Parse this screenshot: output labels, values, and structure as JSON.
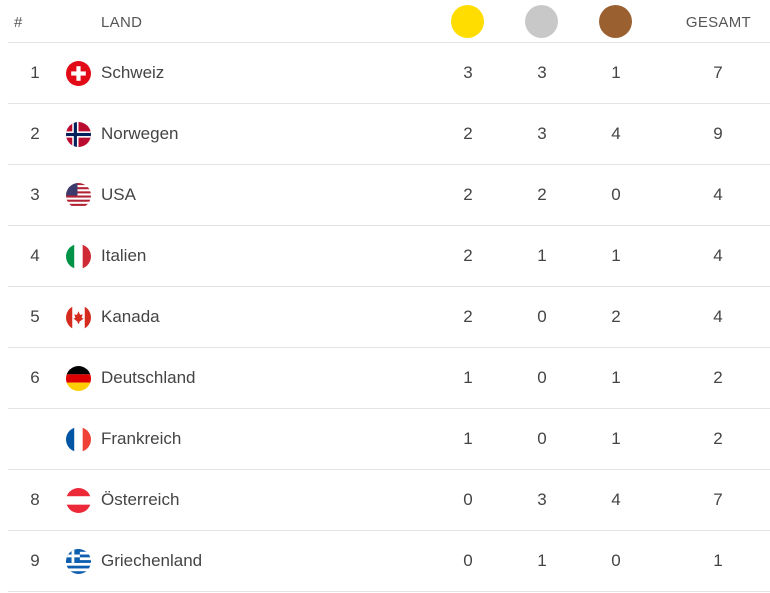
{
  "header": {
    "rank_label": "#",
    "country_label": "LAND",
    "total_label": "GESAMT",
    "gold_color": "#ffdd00",
    "silver_color": "#c8c8c8",
    "bronze_color": "#9a6030"
  },
  "rows": [
    {
      "rank": "1",
      "flag": "switzerland-flag-icon",
      "country": "Schweiz",
      "gold": "3",
      "silver": "3",
      "bronze": "1",
      "total": "7"
    },
    {
      "rank": "2",
      "flag": "norway-flag-icon",
      "country": "Norwegen",
      "gold": "2",
      "silver": "3",
      "bronze": "4",
      "total": "9"
    },
    {
      "rank": "3",
      "flag": "usa-flag-icon",
      "country": "USA",
      "gold": "2",
      "silver": "2",
      "bronze": "0",
      "total": "4"
    },
    {
      "rank": "4",
      "flag": "italy-flag-icon",
      "country": "Italien",
      "gold": "2",
      "silver": "1",
      "bronze": "1",
      "total": "4"
    },
    {
      "rank": "5",
      "flag": "canada-flag-icon",
      "country": "Kanada",
      "gold": "2",
      "silver": "0",
      "bronze": "2",
      "total": "4"
    },
    {
      "rank": "6",
      "flag": "germany-flag-icon",
      "country": "Deutschland",
      "gold": "1",
      "silver": "0",
      "bronze": "1",
      "total": "2"
    },
    {
      "rank": "",
      "flag": "france-flag-icon",
      "country": "Frankreich",
      "gold": "1",
      "silver": "0",
      "bronze": "1",
      "total": "2"
    },
    {
      "rank": "8",
      "flag": "austria-flag-icon",
      "country": "Österreich",
      "gold": "0",
      "silver": "3",
      "bronze": "4",
      "total": "7"
    },
    {
      "rank": "9",
      "flag": "greece-flag-icon",
      "country": "Griechenland",
      "gold": "0",
      "silver": "1",
      "bronze": "0",
      "total": "1"
    }
  ]
}
